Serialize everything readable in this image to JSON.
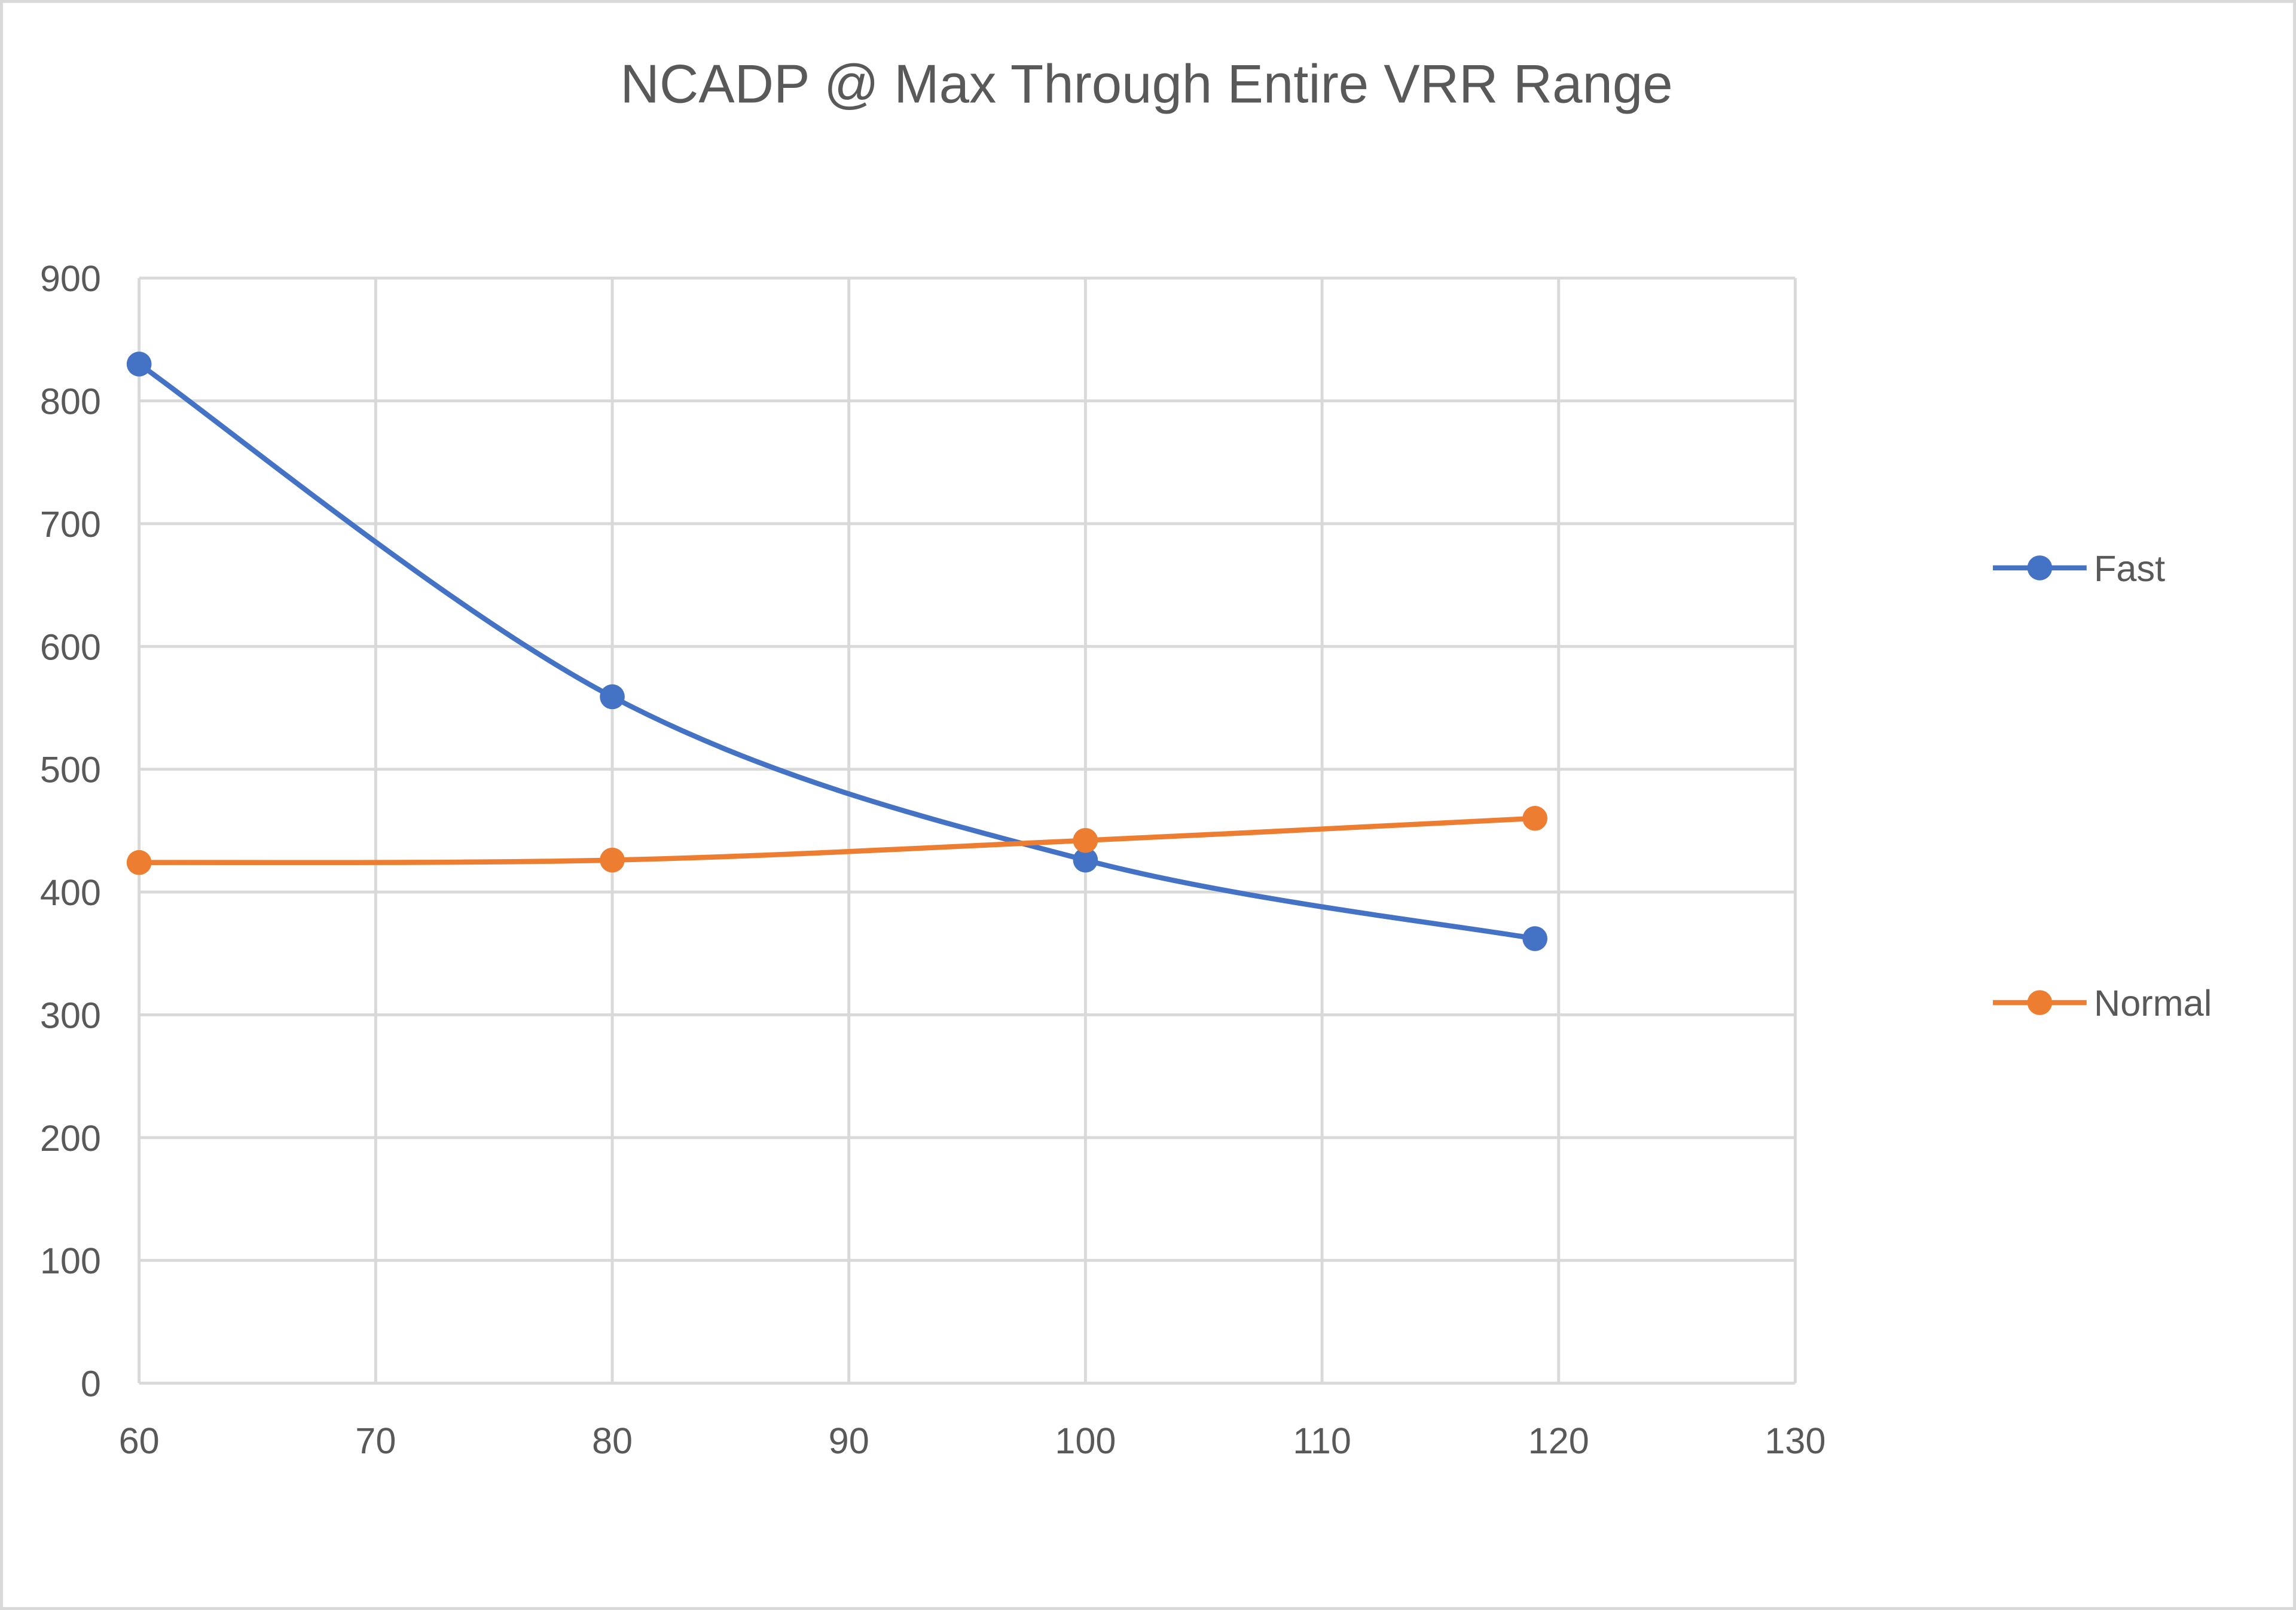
{
  "chart_data": {
    "type": "line",
    "title": "NCADP @ Max Through Entire VRR Range",
    "xlabel": "",
    "ylabel": "",
    "xlim": [
      60,
      130
    ],
    "ylim": [
      0,
      900
    ],
    "xticks": [
      60,
      70,
      80,
      90,
      100,
      110,
      120,
      130
    ],
    "yticks": [
      0,
      100,
      200,
      300,
      400,
      500,
      600,
      700,
      800,
      900
    ],
    "grid": true,
    "smoothed": true,
    "legend_position": "right",
    "series": [
      {
        "name": "Fast",
        "color": "#4472C4",
        "x": [
          60,
          80,
          100,
          119
        ],
        "y": [
          830,
          559,
          426,
          362
        ]
      },
      {
        "name": "Normal",
        "color": "#ED7D31",
        "x": [
          60,
          80,
          100,
          119
        ],
        "y": [
          424,
          426,
          442,
          460
        ]
      }
    ]
  }
}
